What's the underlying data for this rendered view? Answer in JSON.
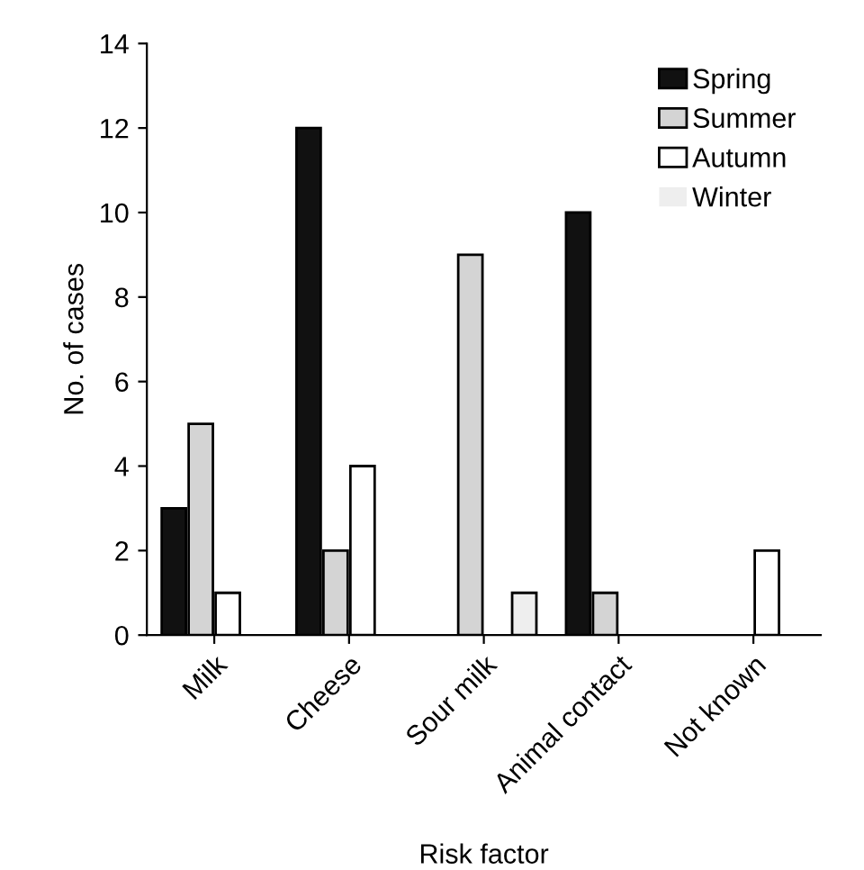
{
  "chart_data": {
    "type": "bar",
    "xlabel": "Risk factor",
    "ylabel": "No. of cases",
    "categories": [
      "Milk",
      "Cheese",
      "Sour milk",
      "Animal contact",
      "Not known"
    ],
    "series": [
      {
        "name": "Spring",
        "color": "#111111",
        "values": [
          3,
          12,
          0,
          10,
          0
        ]
      },
      {
        "name": "Summer",
        "color": "#d4d4d4",
        "values": [
          5,
          2,
          9,
          1,
          0
        ]
      },
      {
        "name": "Autumn",
        "color": "#ffffff",
        "values": [
          1,
          4,
          0,
          0,
          2
        ]
      },
      {
        "name": "Winter",
        "color": "#eeeeee",
        "values": [
          0,
          0,
          1,
          0,
          0
        ]
      }
    ],
    "ylim": [
      0,
      14
    ],
    "yticks": [
      0,
      2,
      4,
      6,
      8,
      10,
      12,
      14
    ],
    "grid": false,
    "legend": "top right"
  }
}
